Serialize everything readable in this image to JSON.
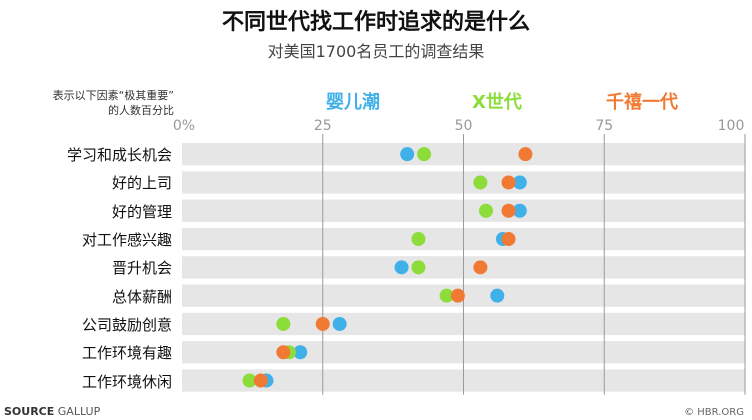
{
  "chart_data": {
    "type": "scatter",
    "title": "不同世代找工作时追求的是什么",
    "subtitle": "对美国1700名员工的调查结果",
    "note_lines": [
      "表示以下因素“极其重要”",
      "的人数百分比"
    ],
    "xlim": [
      0,
      100
    ],
    "x_ticks": [
      "0%",
      "25",
      "50",
      "75",
      "100"
    ],
    "x_tick_values": [
      0,
      25,
      50,
      75,
      100
    ],
    "grid": "vertical",
    "legend_placement": "top",
    "categories": [
      "学习和成长机会",
      "好的上司",
      "好的管理",
      "对工作感兴趣",
      "晋升机会",
      "总体薪酬",
      "公司鼓励创意",
      "工作环境有趣",
      "工作环境休闲"
    ],
    "series": [
      {
        "name": "婴儿潮",
        "color": "#3fb0e8",
        "values": [
          40,
          60,
          60,
          57,
          39,
          56,
          28,
          21,
          15
        ]
      },
      {
        "name": "X世代",
        "color": "#8cdc3a",
        "values": [
          43,
          53,
          54,
          42,
          42,
          47,
          18,
          19,
          12
        ]
      },
      {
        "name": "千禧一代",
        "color": "#f07a34",
        "values": [
          61,
          58,
          58,
          58,
          53,
          49,
          25,
          18,
          14
        ]
      }
    ]
  },
  "footer": {
    "source_label": "SOURCE",
    "source_name": "GALLUP",
    "copyright": "© HBR.ORG"
  }
}
